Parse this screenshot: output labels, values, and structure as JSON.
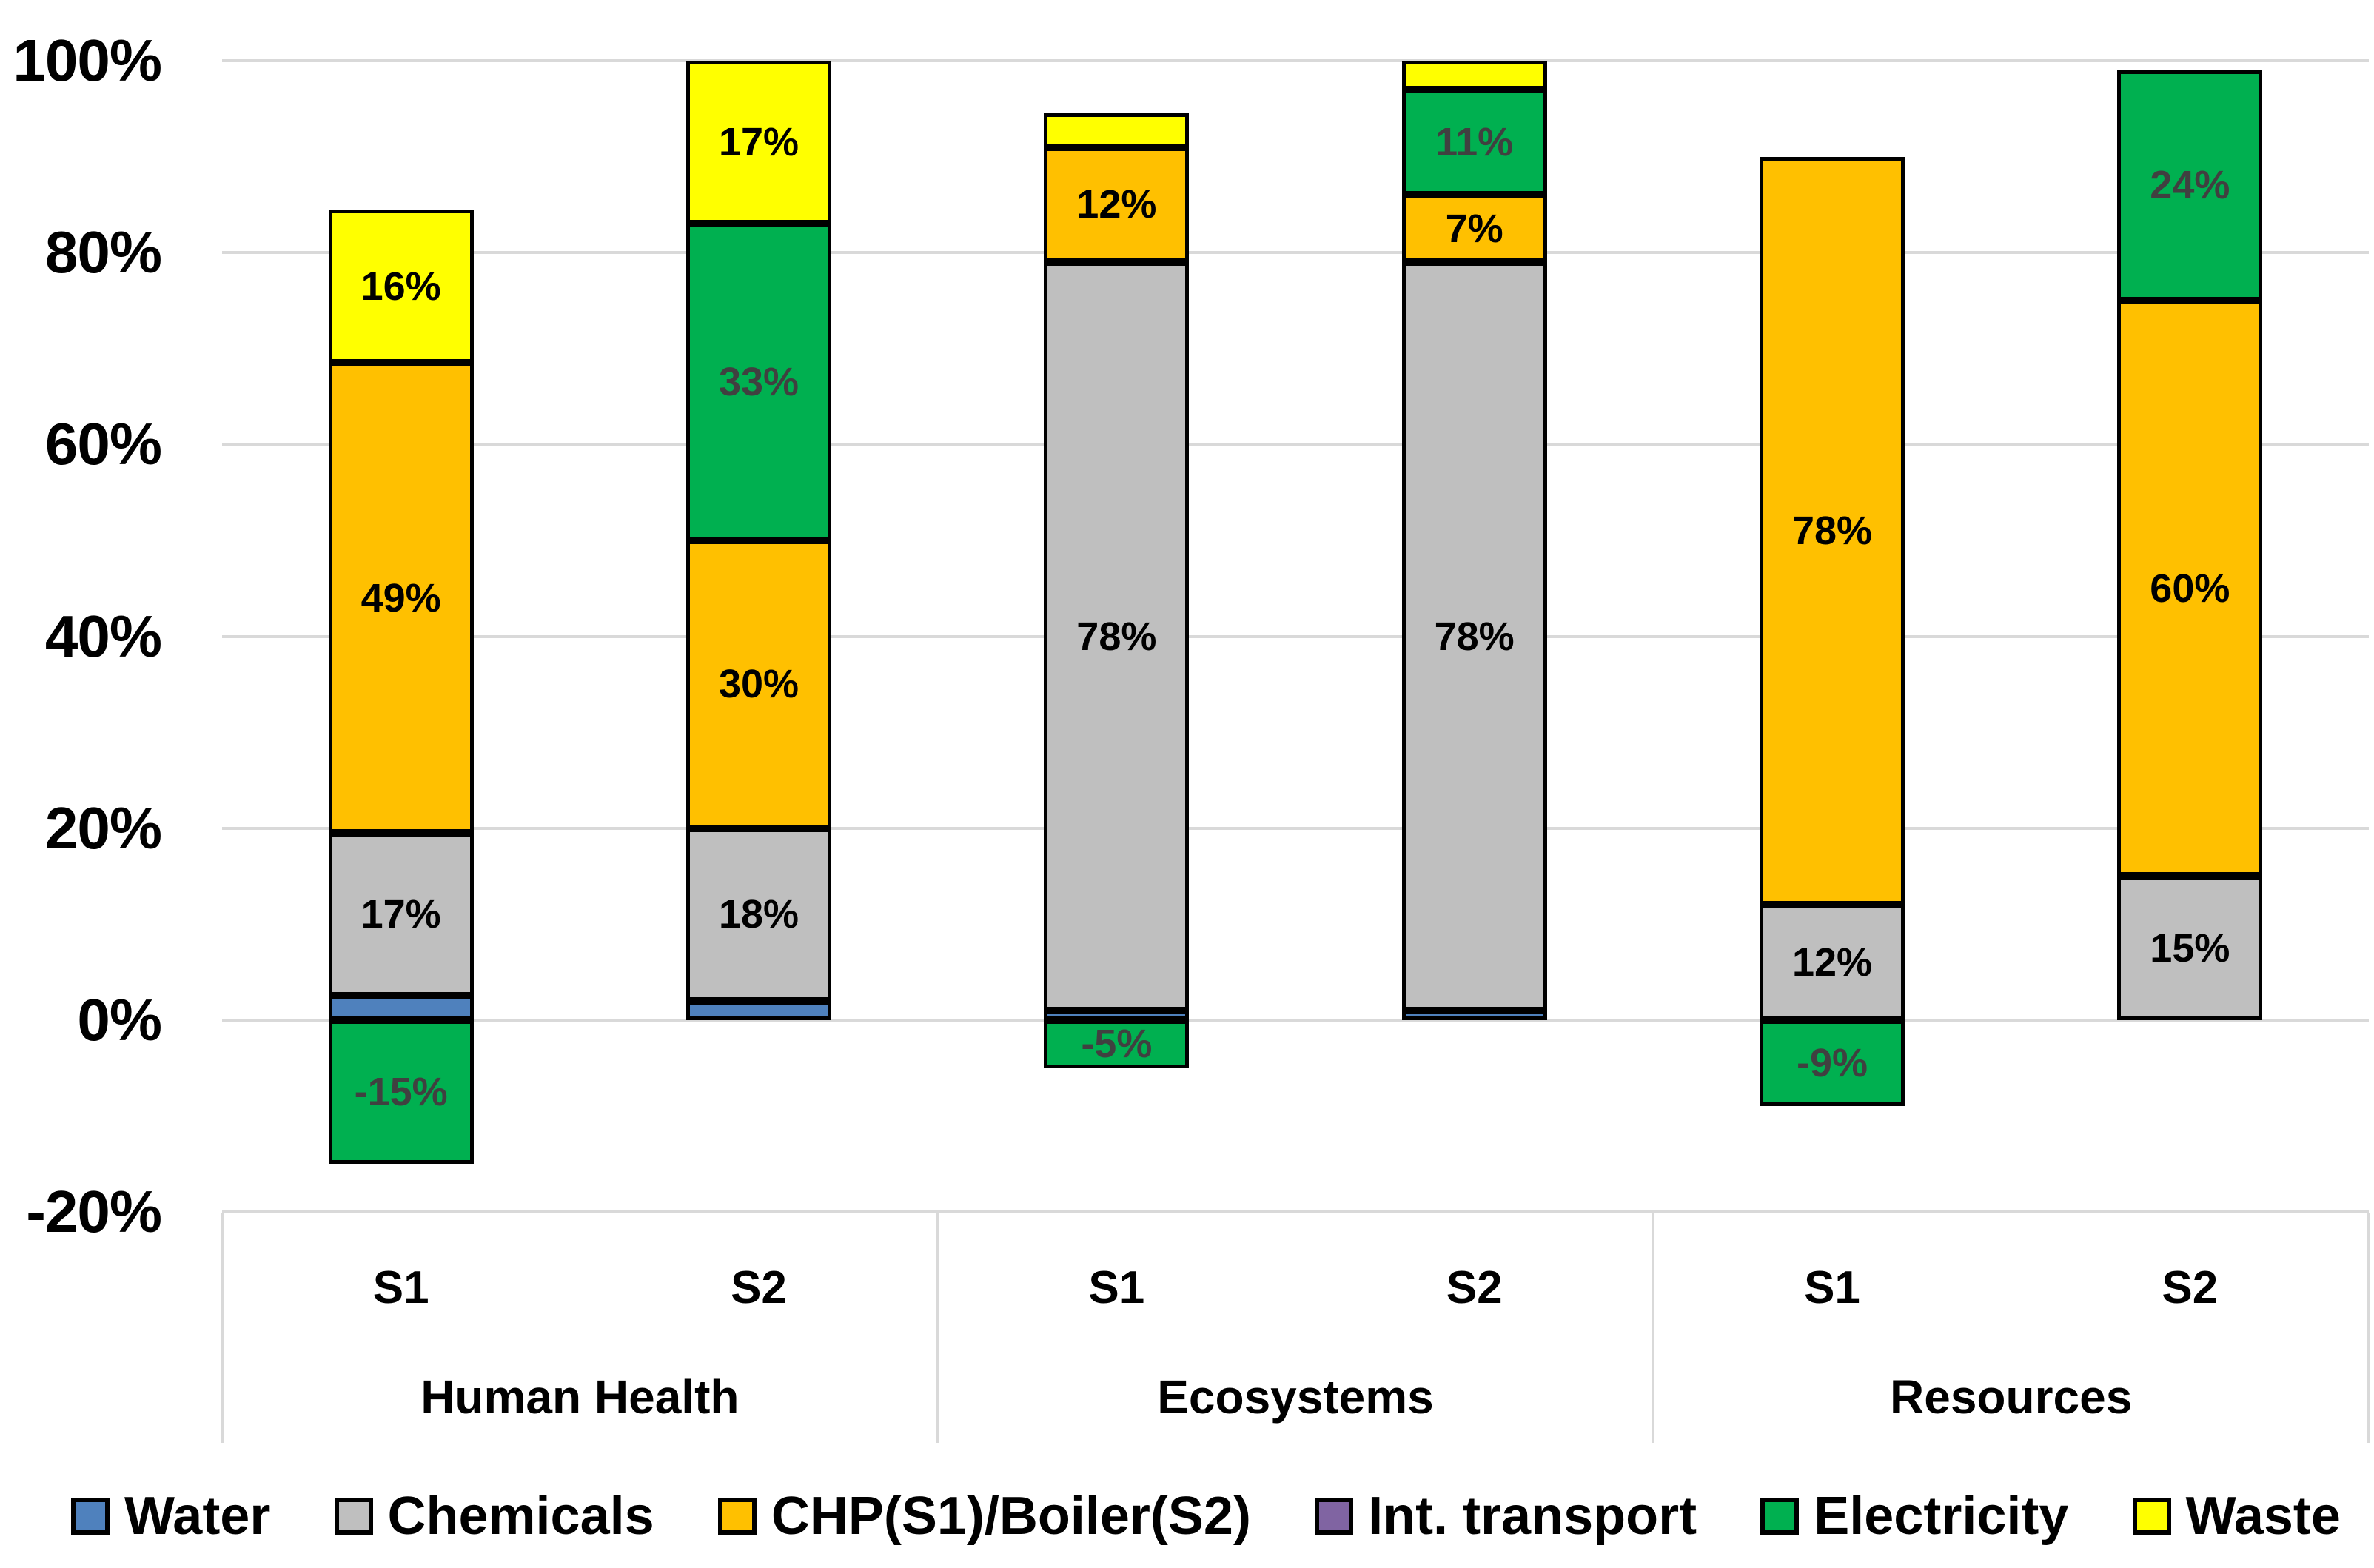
{
  "chart_data": {
    "type": "bar",
    "stacked": true,
    "title": "",
    "legend_position": "bottom",
    "y_axis": {
      "min": -20,
      "max": 100,
      "grid": true,
      "ticks": [
        {
          "value": 100,
          "label": "100%"
        },
        {
          "value": 80,
          "label": "80%"
        },
        {
          "value": 60,
          "label": "60%"
        },
        {
          "value": 40,
          "label": "40%"
        },
        {
          "value": 20,
          "label": "20%"
        },
        {
          "value": 0,
          "label": "0%"
        },
        {
          "value": -20,
          "label": "-20%"
        }
      ]
    },
    "x_axis": {
      "groups": [
        {
          "label": "Human Health",
          "scenarios": [
            "S1",
            "S2"
          ]
        },
        {
          "label": "Ecosystems",
          "scenarios": [
            "S1",
            "S2"
          ]
        },
        {
          "label": "Resources",
          "scenarios": [
            "S1",
            "S2"
          ]
        }
      ]
    },
    "bar_order": [
      "Human Health S1",
      "Human Health S2",
      "Ecosystems S1",
      "Ecosystems S2",
      "Resources S1",
      "Resources S2"
    ],
    "series": [
      {
        "name": "Water",
        "color": "#4F81BD",
        "label_color": "#000000",
        "values": [
          2.5,
          2,
          1,
          1,
          0,
          0
        ]
      },
      {
        "name": "Chemicals",
        "color": "#BFBFBF",
        "label_color": "#000000",
        "values": [
          17,
          18,
          78,
          78,
          12,
          15
        ]
      },
      {
        "name": "CHP(S1)/Boiler(S2)",
        "color": "#FFC000",
        "label_color": "#000000",
        "values": [
          49,
          30,
          12,
          7,
          78,
          60
        ]
      },
      {
        "name": "Int. transport",
        "color": "#8064A2",
        "label_color": "#000000",
        "values": [
          0,
          0,
          0,
          0,
          0,
          0
        ]
      },
      {
        "name": "Electricity",
        "color": "#00B050",
        "label_color": "#404040",
        "values": [
          -15,
          33,
          -5,
          11,
          -9,
          24
        ]
      },
      {
        "name": "Waste",
        "color": "#FFFF00",
        "label_color": "#000000",
        "values": [
          16,
          17,
          3.5,
          3,
          0,
          0
        ]
      }
    ],
    "data_labels": {
      "min_abs_value_to_show": 5,
      "suffix": "%"
    },
    "visible_labels": {
      "Human Health S1": [
        "16%",
        "49%",
        "17%",
        "-15%"
      ],
      "Human Health S2": [
        "17%",
        "33%",
        "30%",
        "18%"
      ],
      "Ecosystems S1": [
        "12%",
        "78%",
        "-5%"
      ],
      "Ecosystems S2": [
        "7%",
        "11%",
        "78%"
      ],
      "Resources S1": [
        "78%",
        "12%",
        "-9%"
      ],
      "Resources S2": [
        "24%",
        "60%",
        "15%"
      ]
    },
    "colors": {
      "background": "#FFFFFF",
      "gridline": "#D9D9D9",
      "axis_band_line": "#D9D9D9",
      "bar_border": "#000000"
    }
  }
}
